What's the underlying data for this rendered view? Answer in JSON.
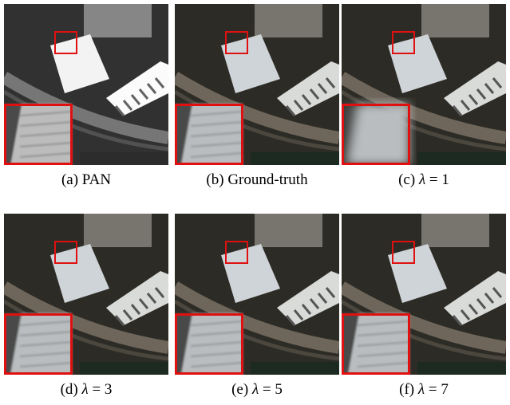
{
  "panels": [
    {
      "label": "(a)",
      "caption": {
        "text": "PAN"
      }
    },
    {
      "label": "(b)",
      "caption": {
        "text": "Ground-truth"
      }
    },
    {
      "label": "(c)",
      "caption": {
        "var": "λ",
        "rest": "= 1"
      }
    },
    {
      "label": "(d)",
      "caption": {
        "var": "λ",
        "rest": "= 3"
      }
    },
    {
      "label": "(e)",
      "caption": {
        "var": "λ",
        "rest": "= 5"
      }
    },
    {
      "label": "(f)",
      "caption": {
        "var": "λ",
        "rest": "= 7"
      }
    }
  ]
}
